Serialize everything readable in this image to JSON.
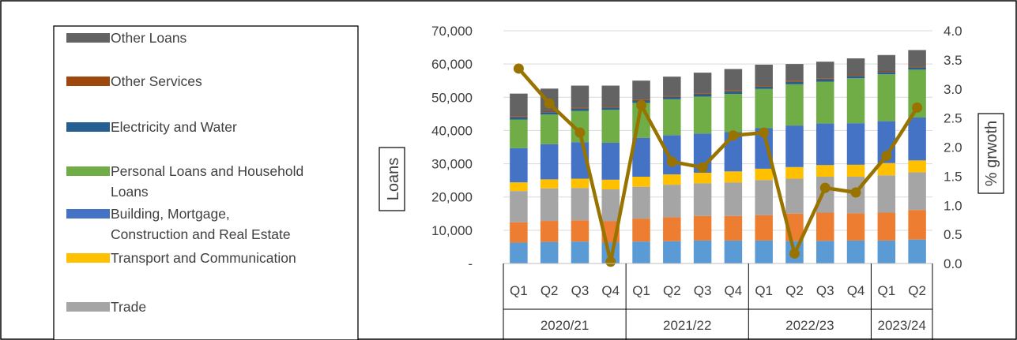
{
  "chart_data": {
    "type": "bar",
    "stacked": true,
    "categories": [
      "Q1",
      "Q2",
      "Q3",
      "Q4",
      "Q1",
      "Q2",
      "Q3",
      "Q4",
      "Q1",
      "Q2",
      "Q3",
      "Q4",
      "Q1",
      "Q2"
    ],
    "groups": [
      {
        "label": "2020/21",
        "start": 0,
        "end": 3
      },
      {
        "label": "2021/22",
        "start": 4,
        "end": 7
      },
      {
        "label": "2022/23",
        "start": 8,
        "end": 11
      },
      {
        "label": "2023/24",
        "start": 12,
        "end": 13
      }
    ],
    "ylabel": "Loans",
    "y2label": "% grwoth",
    "ylim": [
      0,
      70000
    ],
    "yticks": [
      0,
      10000,
      20000,
      30000,
      40000,
      50000,
      60000,
      70000
    ],
    "ytick_labels": [
      "-",
      "10,000",
      "20,000",
      "30,000",
      "40,000",
      "50,000",
      "60,000",
      "70,000"
    ],
    "y2lim": [
      0,
      4.0
    ],
    "y2ticks": [
      0,
      0.5,
      1.0,
      1.5,
      2.0,
      2.5,
      3.0,
      3.5,
      4.0
    ],
    "y2tick_labels": [
      "0.0",
      "0.5",
      "1.0",
      "1.5",
      "2.0",
      "2.5",
      "3.0",
      "3.5",
      "4.0"
    ],
    "gridlines": true,
    "legend_position": "left",
    "series": [
      {
        "name": "",
        "color": "#5b9bd5",
        "values": [
          6300,
          6500,
          6600,
          6400,
          6600,
          6700,
          6900,
          6900,
          6900,
          6800,
          6800,
          6900,
          6900,
          7200
        ]
      },
      {
        "name": "",
        "color": "#ed7d31",
        "values": [
          6100,
          6300,
          6400,
          6300,
          6900,
          7200,
          7400,
          7400,
          7600,
          8200,
          8500,
          8200,
          8400,
          8900
        ]
      },
      {
        "name": "Trade",
        "color": "#a5a5a5",
        "values": [
          9400,
          9800,
          9700,
          9600,
          9600,
          9800,
          9800,
          10100,
          10600,
          10500,
          10800,
          11000,
          11200,
          11300
        ]
      },
      {
        "name": "Transport and Communication",
        "color": "#ffc000",
        "values": [
          2600,
          2700,
          2800,
          2900,
          3000,
          3100,
          3200,
          3300,
          3400,
          3500,
          3500,
          3600,
          3700,
          3600
        ]
      },
      {
        "name": "Building, Mortgage, Construction and Real Estate",
        "color": "#4472c4",
        "values": [
          10300,
          10600,
          11000,
          11100,
          11700,
          11800,
          11800,
          11800,
          12200,
          12500,
          12500,
          12500,
          12600,
          12900
        ]
      },
      {
        "name": "Personal Loans and Household Loans",
        "color": "#70ad47",
        "values": [
          8600,
          8900,
          9400,
          9900,
          10500,
          10800,
          11100,
          11500,
          11800,
          12400,
          12600,
          13500,
          14100,
          14400
        ]
      },
      {
        "name": "Electricity and Water",
        "color": "#255e91",
        "values": [
          700,
          700,
          700,
          700,
          700,
          700,
          700,
          700,
          700,
          700,
          700,
          700,
          700,
          700
        ]
      },
      {
        "name": "Other Services",
        "color": "#9e480e",
        "values": [
          300,
          300,
          300,
          300,
          300,
          300,
          300,
          300,
          300,
          300,
          300,
          300,
          300,
          300
        ]
      },
      {
        "name": "Other Loans",
        "color": "#636363",
        "values": [
          6800,
          6800,
          6600,
          6300,
          5700,
          5800,
          6200,
          6500,
          6300,
          5100,
          5000,
          5000,
          4800,
          4900
        ]
      }
    ],
    "line": {
      "name": "",
      "axis": "secondary",
      "color": "#997300",
      "values": [
        3.35,
        2.75,
        2.25,
        0.03,
        2.72,
        1.75,
        1.65,
        2.2,
        2.25,
        0.17,
        1.3,
        1.22,
        1.85,
        2.68
      ]
    }
  }
}
